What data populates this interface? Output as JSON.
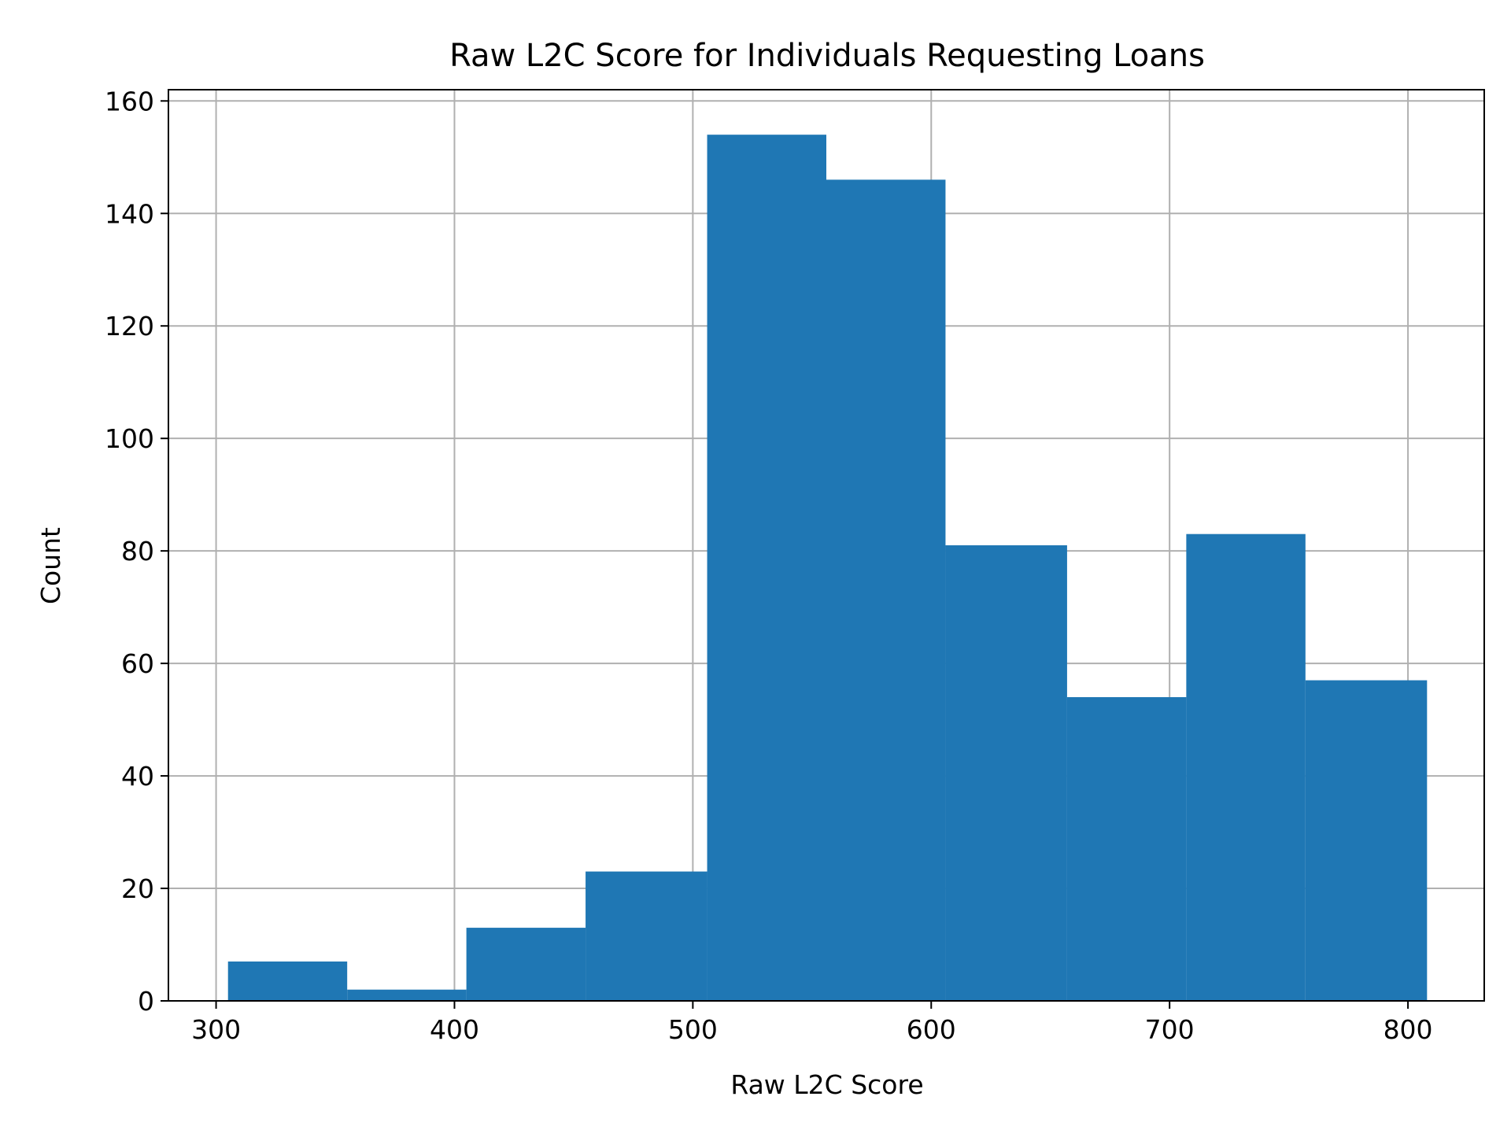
{
  "chart_data": {
    "type": "bar",
    "title": "Raw L2C Score for Individuals Requesting Loans",
    "xlabel": "Raw L2C Score",
    "ylabel": "Count",
    "xlim": [
      280,
      832
    ],
    "ylim": [
      0,
      162
    ],
    "xticks": [
      300,
      400,
      500,
      600,
      700,
      800
    ],
    "yticks": [
      0,
      20,
      40,
      60,
      80,
      100,
      120,
      140,
      160
    ],
    "grid": true,
    "bins": [
      {
        "x0": 305,
        "x1": 355,
        "count": 7
      },
      {
        "x0": 355,
        "x1": 405,
        "count": 2
      },
      {
        "x0": 405,
        "x1": 455,
        "count": 13
      },
      {
        "x0": 455,
        "x1": 506,
        "count": 23
      },
      {
        "x0": 506,
        "x1": 556,
        "count": 154
      },
      {
        "x0": 556,
        "x1": 606,
        "count": 146
      },
      {
        "x0": 606,
        "x1": 657,
        "count": 81
      },
      {
        "x0": 657,
        "x1": 707,
        "count": 54
      },
      {
        "x0": 707,
        "x1": 757,
        "count": 83
      },
      {
        "x0": 757,
        "x1": 808,
        "count": 57
      }
    ],
    "colors": {
      "bar": "#1f77b4",
      "grid": "#b0b0b0",
      "axis": "#000000"
    }
  }
}
